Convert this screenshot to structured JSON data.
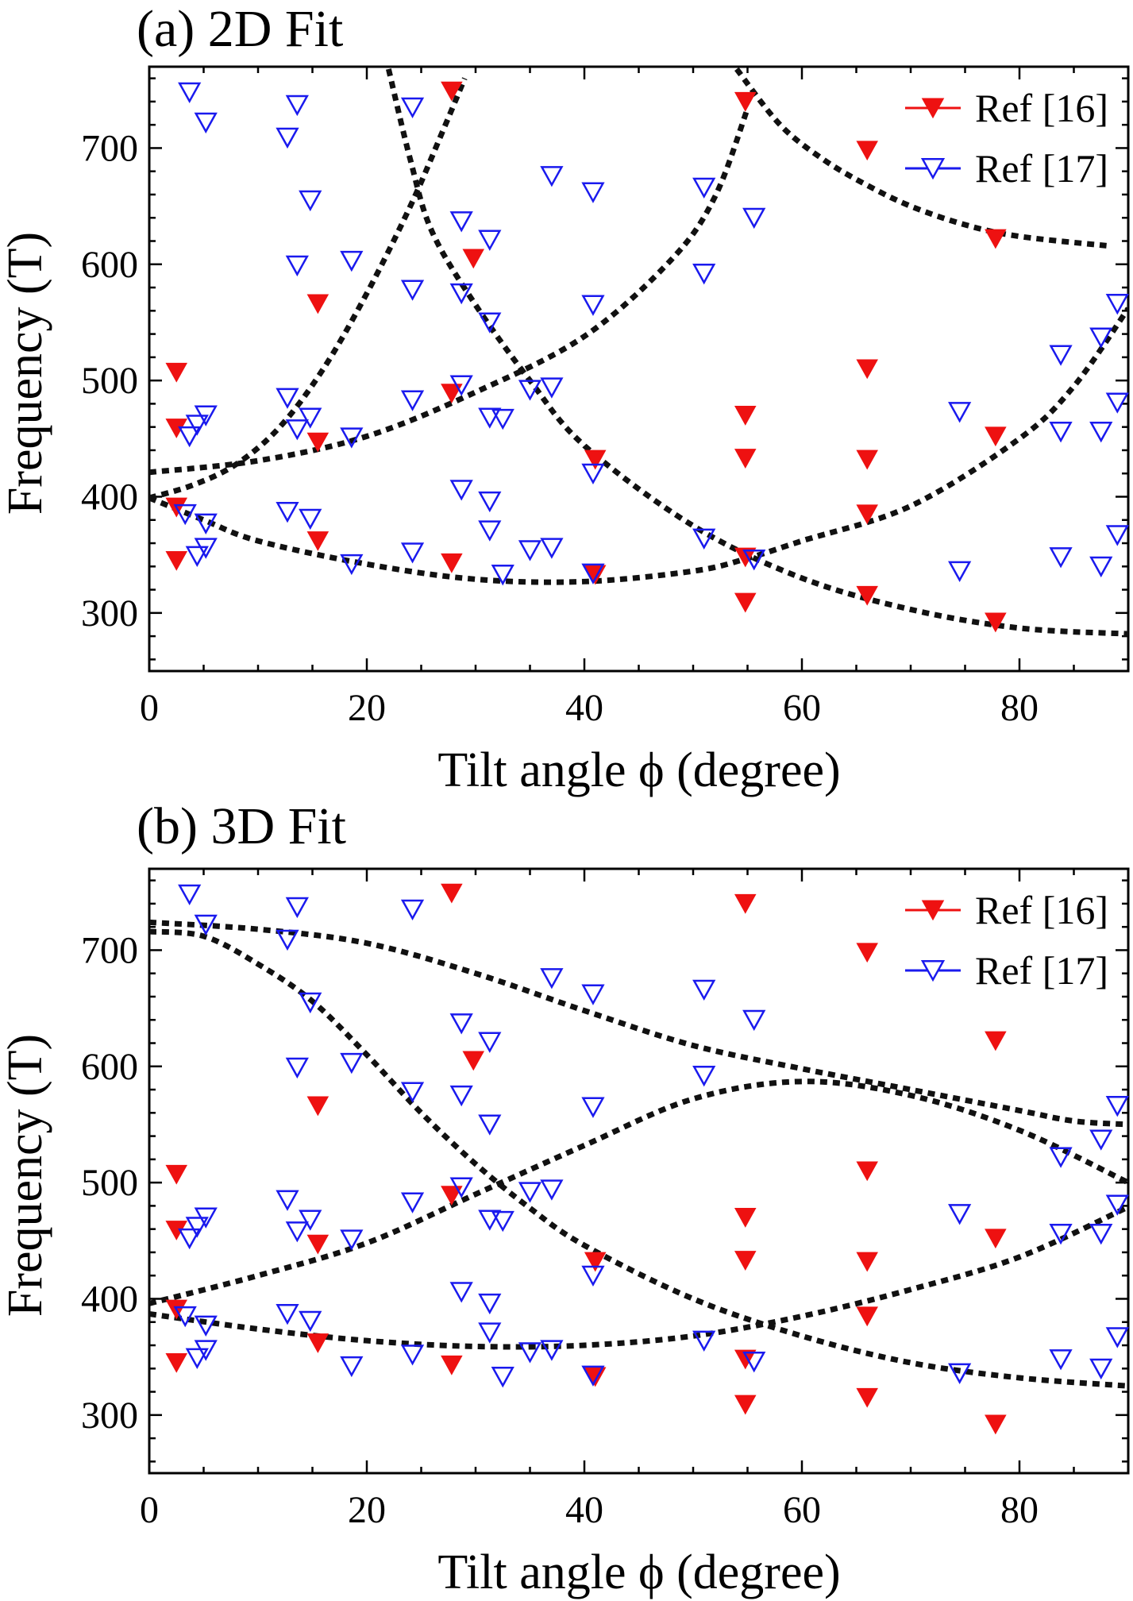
{
  "colors": {
    "ref16": "#ee1111",
    "ref17": "#1a1aee",
    "fit": "#111111"
  },
  "chart_data": [
    {
      "type": "scatter",
      "title": "(a) 2D Fit",
      "xlabel": "Tilt angle ϕ (degree)",
      "ylabel": "Frequency (T)",
      "xlim": [
        0,
        90
      ],
      "ylim": [
        250,
        770
      ],
      "xticks": [
        0,
        20,
        40,
        60,
        80
      ],
      "yticks": [
        300,
        400,
        500,
        600,
        700
      ],
      "legend_position": "top-right",
      "series": [
        {
          "name": "Ref [16]",
          "marker": "filled-down-triangle",
          "color": "#ee1111",
          "points": [
            [
              2.5,
              507
            ],
            [
              2.5,
              459
            ],
            [
              2.5,
              391
            ],
            [
              2.5,
              345
            ],
            [
              15.5,
              566
            ],
            [
              15.5,
              447
            ],
            [
              15.5,
              362
            ],
            [
              27.8,
              749
            ],
            [
              27.8,
              489
            ],
            [
              27.8,
              343
            ],
            [
              29.8,
              605
            ],
            [
              41,
              432
            ],
            [
              41,
              333
            ],
            [
              54.8,
              740
            ],
            [
              54.8,
              470
            ],
            [
              54.8,
              433
            ],
            [
              54.8,
              348
            ],
            [
              54.8,
              309
            ],
            [
              66,
              698
            ],
            [
              66,
              510
            ],
            [
              66,
              432
            ],
            [
              66,
              385
            ],
            [
              66,
              315
            ],
            [
              77.8,
              622
            ],
            [
              77.8,
              452
            ],
            [
              77.8,
              292
            ]
          ]
        },
        {
          "name": "Ref [17]",
          "marker": "open-down-triangle",
          "color": "#1a1aee",
          "points": [
            [
              3.3,
              385
            ],
            [
              3.7,
              748
            ],
            [
              3.7,
              452
            ],
            [
              4.4,
              462
            ],
            [
              4.4,
              349
            ],
            [
              5.2,
              722
            ],
            [
              5.2,
              470
            ],
            [
              5.2,
              377
            ],
            [
              5.2,
              356
            ],
            [
              12.7,
              709
            ],
            [
              12.7,
              485
            ],
            [
              12.7,
              387
            ],
            [
              13.6,
              737
            ],
            [
              13.6,
              599
            ],
            [
              13.6,
              458
            ],
            [
              14.8,
              655
            ],
            [
              14.8,
              468
            ],
            [
              14.8,
              381
            ],
            [
              18.6,
              603
            ],
            [
              18.6,
              451
            ],
            [
              18.6,
              342
            ],
            [
              24.2,
              735
            ],
            [
              24.2,
              578
            ],
            [
              24.2,
              483
            ],
            [
              24.2,
              352
            ],
            [
              28.7,
              637
            ],
            [
              28.7,
              575
            ],
            [
              28.7,
              496
            ],
            [
              28.7,
              406
            ],
            [
              31.3,
              621
            ],
            [
              31.3,
              550
            ],
            [
              31.3,
              468
            ],
            [
              31.3,
              396
            ],
            [
              31.3,
              371
            ],
            [
              32.5,
              467
            ],
            [
              32.5,
              333
            ],
            [
              35,
              492
            ],
            [
              35,
              354
            ],
            [
              37,
              676
            ],
            [
              37,
              494
            ],
            [
              37,
              356
            ],
            [
              40.8,
              662
            ],
            [
              40.8,
              565
            ],
            [
              40.8,
              420
            ],
            [
              40.8,
              334
            ],
            [
              51,
              666
            ],
            [
              51,
              592
            ],
            [
              51,
              364
            ],
            [
              55.6,
              640
            ],
            [
              55.6,
              346
            ],
            [
              74.5,
              473
            ],
            [
              74.5,
              336
            ],
            [
              83.8,
              522
            ],
            [
              83.8,
              456
            ],
            [
              83.8,
              348
            ],
            [
              87.5,
              537
            ],
            [
              87.5,
              456
            ],
            [
              87.5,
              340
            ],
            [
              89,
              566
            ],
            [
              89,
              481
            ],
            [
              89,
              367
            ]
          ]
        }
      ],
      "fit_curves": [
        [
          [
            0,
            399
          ],
          [
            4,
            410
          ],
          [
            8,
            428
          ],
          [
            12,
            460
          ],
          [
            16,
            510
          ],
          [
            20,
            575
          ],
          [
            24,
            650
          ],
          [
            27,
            715
          ],
          [
            29,
            760
          ]
        ],
        [
          [
            0,
            421
          ],
          [
            10,
            431
          ],
          [
            20,
            452
          ],
          [
            30,
            490
          ],
          [
            40,
            538
          ],
          [
            48,
            604
          ],
          [
            52,
            658
          ],
          [
            55,
            734
          ]
        ],
        [
          [
            0,
            399
          ],
          [
            5,
            380
          ],
          [
            10,
            362
          ],
          [
            20,
            342
          ],
          [
            30,
            329
          ],
          [
            40,
            327
          ],
          [
            50,
            336
          ],
          [
            55,
            347
          ],
          [
            60,
            362
          ],
          [
            70,
            392
          ],
          [
            80,
            450
          ],
          [
            85,
            495
          ],
          [
            90,
            562
          ]
        ],
        [
          [
            22,
            768
          ],
          [
            24,
            690
          ],
          [
            26,
            628
          ],
          [
            30,
            565
          ],
          [
            35,
            500
          ],
          [
            40,
            444
          ],
          [
            50,
            375
          ],
          [
            60,
            330
          ],
          [
            70,
            303
          ],
          [
            80,
            287
          ],
          [
            90,
            282
          ]
        ],
        [
          [
            54,
            768
          ],
          [
            58,
            720
          ],
          [
            62,
            690
          ],
          [
            66,
            668
          ],
          [
            70,
            650
          ],
          [
            75,
            634
          ],
          [
            80,
            624
          ],
          [
            88,
            616
          ]
        ]
      ]
    },
    {
      "type": "scatter",
      "title": "(b) 3D Fit",
      "xlabel": "Tilt angle ϕ (degree)",
      "ylabel": "Frequency (T)",
      "xlim": [
        0,
        90
      ],
      "ylim": [
        250,
        770
      ],
      "xticks": [
        0,
        20,
        40,
        60,
        80
      ],
      "yticks": [
        300,
        400,
        500,
        600,
        700
      ],
      "legend_position": "top-right",
      "series": [
        {
          "name": "Ref [16]",
          "marker": "filled-down-triangle",
          "color": "#ee1111",
          "points": [
            [
              2.5,
              507
            ],
            [
              2.5,
              459
            ],
            [
              2.5,
              391
            ],
            [
              2.5,
              345
            ],
            [
              15.5,
              566
            ],
            [
              15.5,
              447
            ],
            [
              15.5,
              362
            ],
            [
              27.8,
              749
            ],
            [
              27.8,
              489
            ],
            [
              27.8,
              343
            ],
            [
              29.8,
              605
            ],
            [
              41,
              432
            ],
            [
              41,
              333
            ],
            [
              54.8,
              740
            ],
            [
              54.8,
              470
            ],
            [
              54.8,
              433
            ],
            [
              54.8,
              348
            ],
            [
              54.8,
              309
            ],
            [
              66,
              698
            ],
            [
              66,
              510
            ],
            [
              66,
              432
            ],
            [
              66,
              385
            ],
            [
              66,
              315
            ],
            [
              77.8,
              622
            ],
            [
              77.8,
              452
            ],
            [
              77.8,
              292
            ]
          ]
        },
        {
          "name": "Ref [17]",
          "marker": "open-down-triangle",
          "color": "#1a1aee",
          "points": [
            [
              3.3,
              385
            ],
            [
              3.7,
              748
            ],
            [
              3.7,
              452
            ],
            [
              4.4,
              462
            ],
            [
              4.4,
              349
            ],
            [
              5.2,
              722
            ],
            [
              5.2,
              470
            ],
            [
              5.2,
              377
            ],
            [
              5.2,
              356
            ],
            [
              12.7,
              709
            ],
            [
              12.7,
              485
            ],
            [
              12.7,
              387
            ],
            [
              13.6,
              737
            ],
            [
              13.6,
              599
            ],
            [
              13.6,
              458
            ],
            [
              14.8,
              655
            ],
            [
              14.8,
              468
            ],
            [
              14.8,
              381
            ],
            [
              18.6,
              603
            ],
            [
              18.6,
              451
            ],
            [
              18.6,
              342
            ],
            [
              24.2,
              735
            ],
            [
              24.2,
              578
            ],
            [
              24.2,
              483
            ],
            [
              24.2,
              352
            ],
            [
              28.7,
              637
            ],
            [
              28.7,
              575
            ],
            [
              28.7,
              496
            ],
            [
              28.7,
              406
            ],
            [
              31.3,
              621
            ],
            [
              31.3,
              550
            ],
            [
              31.3,
              468
            ],
            [
              31.3,
              396
            ],
            [
              31.3,
              371
            ],
            [
              32.5,
              467
            ],
            [
              32.5,
              333
            ],
            [
              35,
              492
            ],
            [
              35,
              354
            ],
            [
              37,
              676
            ],
            [
              37,
              494
            ],
            [
              37,
              356
            ],
            [
              40.8,
              662
            ],
            [
              40.8,
              565
            ],
            [
              40.8,
              420
            ],
            [
              40.8,
              334
            ],
            [
              51,
              666
            ],
            [
              51,
              592
            ],
            [
              51,
              364
            ],
            [
              55.6,
              640
            ],
            [
              55.6,
              346
            ],
            [
              74.5,
              473
            ],
            [
              74.5,
              336
            ],
            [
              83.8,
              522
            ],
            [
              83.8,
              456
            ],
            [
              83.8,
              348
            ],
            [
              87.5,
              537
            ],
            [
              87.5,
              456
            ],
            [
              87.5,
              340
            ],
            [
              89,
              566
            ],
            [
              89,
              481
            ],
            [
              89,
              367
            ]
          ]
        }
      ],
      "fit_curves": [
        [
          [
            0,
            724
          ],
          [
            10,
            718
          ],
          [
            20,
            706
          ],
          [
            30,
            680
          ],
          [
            40,
            648
          ],
          [
            50,
            618
          ],
          [
            60,
            598
          ],
          [
            70,
            580
          ],
          [
            80,
            562
          ],
          [
            85,
            553
          ],
          [
            90,
            550
          ]
        ],
        [
          [
            0,
            716
          ],
          [
            5,
            712
          ],
          [
            10,
            688
          ],
          [
            15,
            656
          ],
          [
            20,
            610
          ],
          [
            25,
            560
          ],
          [
            30,
            516
          ],
          [
            35,
            478
          ],
          [
            40,
            446
          ],
          [
            50,
            400
          ],
          [
            60,
            368
          ],
          [
            70,
            345
          ],
          [
            80,
            332
          ],
          [
            90,
            325
          ]
        ],
        [
          [
            0,
            396
          ],
          [
            10,
            420
          ],
          [
            20,
            448
          ],
          [
            30,
            490
          ],
          [
            40,
            532
          ],
          [
            50,
            572
          ],
          [
            60,
            587
          ],
          [
            70,
            575
          ],
          [
            80,
            545
          ],
          [
            90,
            500
          ]
        ],
        [
          [
            0,
            387
          ],
          [
            10,
            374
          ],
          [
            20,
            364
          ],
          [
            30,
            359
          ],
          [
            40,
            360
          ],
          [
            50,
            368
          ],
          [
            60,
            385
          ],
          [
            70,
            408
          ],
          [
            80,
            436
          ],
          [
            90,
            479
          ]
        ]
      ]
    }
  ]
}
